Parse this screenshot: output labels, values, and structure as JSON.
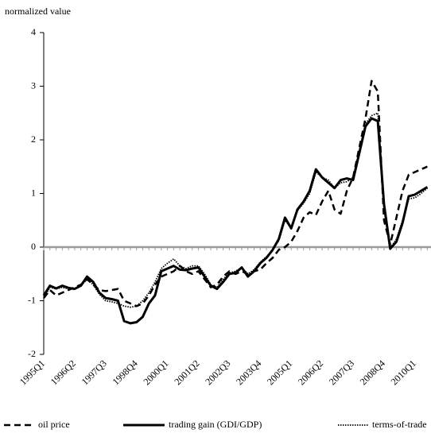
{
  "chart_data": {
    "type": "line",
    "title": "normalized value",
    "categories": [
      "1995Q1",
      null,
      null,
      null,
      null,
      "1996Q2",
      null,
      null,
      null,
      null,
      "1997Q3",
      null,
      null,
      null,
      null,
      "1998Q4",
      null,
      null,
      null,
      null,
      "2000Q1",
      null,
      null,
      null,
      null,
      "2001Q2",
      null,
      null,
      null,
      null,
      "2002Q3",
      null,
      null,
      null,
      null,
      "2003Q4",
      null,
      null,
      null,
      null,
      "2005Q1",
      null,
      null,
      null,
      null,
      "2006Q2",
      null,
      null,
      null,
      null,
      "2007Q3",
      null,
      null,
      null,
      null,
      "2008Q4",
      null,
      null,
      null,
      null,
      "2010Q1",
      null,
      null
    ],
    "ylim": [
      -2,
      4
    ],
    "yticks": [
      -2,
      -1,
      0,
      1,
      2,
      3,
      4
    ],
    "series": [
      {
        "name": "oil price",
        "color": "#000000",
        "dash": "dashed",
        "values": [
          -0.95,
          -0.8,
          -0.9,
          -0.85,
          -0.8,
          -0.75,
          -0.7,
          -0.6,
          -0.7,
          -0.8,
          -0.82,
          -0.8,
          -0.78,
          -1.0,
          -1.05,
          -1.1,
          -1.05,
          -0.9,
          -0.7,
          -0.55,
          -0.5,
          -0.45,
          -0.35,
          -0.45,
          -0.5,
          -0.45,
          -0.6,
          -0.75,
          -0.7,
          -0.55,
          -0.45,
          -0.5,
          -0.45,
          -0.5,
          -0.45,
          -0.42,
          -0.3,
          -0.2,
          -0.05,
          0,
          0.1,
          0.3,
          0.55,
          0.65,
          0.6,
          0.85,
          1.05,
          0.7,
          0.62,
          1.05,
          1.3,
          1.85,
          2.4,
          3.1,
          2.9,
          0.5,
          0.05,
          0.55,
          1.05,
          1.35,
          1.4,
          1.45,
          1.5
        ]
      },
      {
        "name": "trading gain (GDI/GDP)",
        "color": "#000000",
        "dash": "solid",
        "values": [
          -0.9,
          -0.72,
          -0.77,
          -0.72,
          -0.76,
          -0.78,
          -0.72,
          -0.55,
          -0.65,
          -0.85,
          -0.95,
          -0.97,
          -1.0,
          -1.38,
          -1.42,
          -1.4,
          -1.3,
          -1.05,
          -0.9,
          -0.45,
          -0.4,
          -0.35,
          -0.42,
          -0.43,
          -0.4,
          -0.38,
          -0.55,
          -0.72,
          -0.78,
          -0.65,
          -0.5,
          -0.48,
          -0.38,
          -0.55,
          -0.45,
          -0.3,
          -0.2,
          -0.05,
          0.15,
          0.55,
          0.35,
          0.7,
          0.85,
          1.05,
          1.45,
          1.3,
          1.2,
          1.1,
          1.25,
          1.28,
          1.25,
          1.75,
          2.25,
          2.4,
          2.35,
          0.8,
          -0.03,
          0.1,
          0.45,
          0.95,
          0.98,
          1.05,
          1.12
        ]
      },
      {
        "name": "terms-of-trade",
        "color": "#000000",
        "dash": "dotted",
        "values": [
          -0.95,
          -0.75,
          -0.78,
          -0.75,
          -0.78,
          -0.78,
          -0.72,
          -0.6,
          -0.7,
          -0.88,
          -1.0,
          -1.02,
          -1.05,
          -1.1,
          -1.12,
          -1.1,
          -1.0,
          -0.85,
          -0.65,
          -0.4,
          -0.3,
          -0.22,
          -0.35,
          -0.4,
          -0.35,
          -0.35,
          -0.5,
          -0.7,
          -0.75,
          -0.6,
          -0.48,
          -0.45,
          -0.38,
          -0.5,
          -0.42,
          -0.28,
          -0.18,
          -0.05,
          0.12,
          0.5,
          0.35,
          0.68,
          0.82,
          1.0,
          1.4,
          1.3,
          1.25,
          1.1,
          1.2,
          1.22,
          1.3,
          1.8,
          2.3,
          2.45,
          2.5,
          0.7,
          -0.02,
          0.15,
          0.5,
          0.9,
          0.92,
          1.0,
          1.1
        ]
      }
    ]
  }
}
